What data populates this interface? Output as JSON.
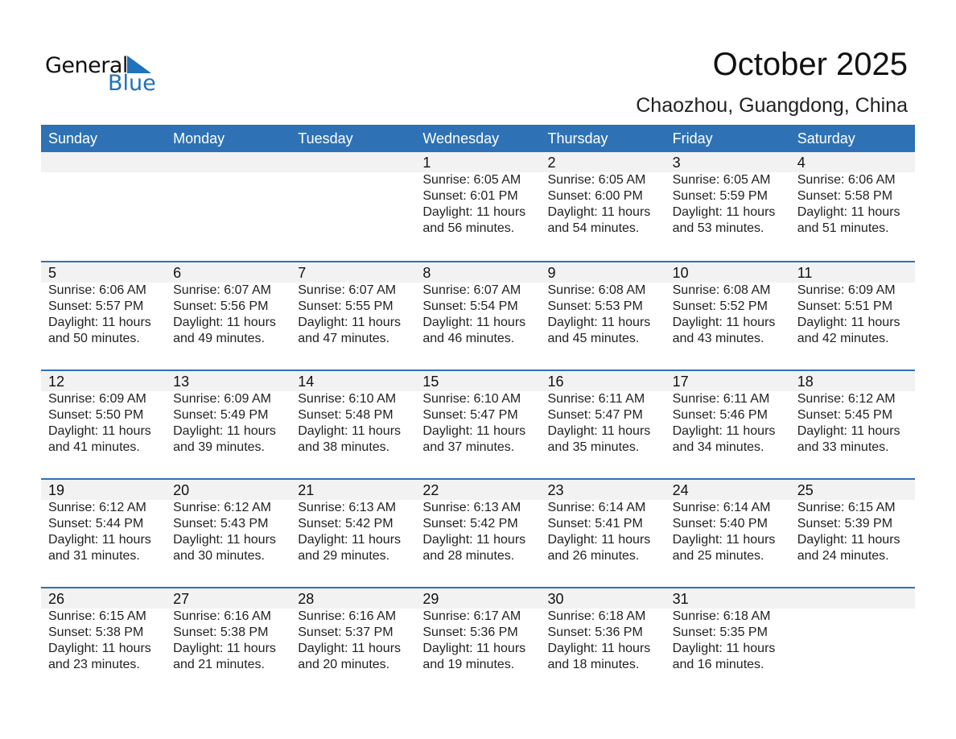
{
  "logo": {
    "text1": "General",
    "text2": "Blue"
  },
  "title": "October 2025",
  "location": "Chaozhou, Guangdong, China",
  "colors": {
    "header": "#2e72b5",
    "band": "#f2f2f2",
    "logo_blue": "#1f72bb"
  },
  "weekdays": [
    "Sunday",
    "Monday",
    "Tuesday",
    "Wednesday",
    "Thursday",
    "Friday",
    "Saturday"
  ],
  "weeks": [
    [
      null,
      null,
      null,
      {
        "day": "1",
        "sunrise": "Sunrise: 6:05 AM",
        "sunset": "Sunset: 6:01 PM",
        "daylight1": "Daylight: 11 hours",
        "daylight2": "and 56 minutes."
      },
      {
        "day": "2",
        "sunrise": "Sunrise: 6:05 AM",
        "sunset": "Sunset: 6:00 PM",
        "daylight1": "Daylight: 11 hours",
        "daylight2": "and 54 minutes."
      },
      {
        "day": "3",
        "sunrise": "Sunrise: 6:05 AM",
        "sunset": "Sunset: 5:59 PM",
        "daylight1": "Daylight: 11 hours",
        "daylight2": "and 53 minutes."
      },
      {
        "day": "4",
        "sunrise": "Sunrise: 6:06 AM",
        "sunset": "Sunset: 5:58 PM",
        "daylight1": "Daylight: 11 hours",
        "daylight2": "and 51 minutes."
      }
    ],
    [
      {
        "day": "5",
        "sunrise": "Sunrise: 6:06 AM",
        "sunset": "Sunset: 5:57 PM",
        "daylight1": "Daylight: 11 hours",
        "daylight2": "and 50 minutes."
      },
      {
        "day": "6",
        "sunrise": "Sunrise: 6:07 AM",
        "sunset": "Sunset: 5:56 PM",
        "daylight1": "Daylight: 11 hours",
        "daylight2": "and 49 minutes."
      },
      {
        "day": "7",
        "sunrise": "Sunrise: 6:07 AM",
        "sunset": "Sunset: 5:55 PM",
        "daylight1": "Daylight: 11 hours",
        "daylight2": "and 47 minutes."
      },
      {
        "day": "8",
        "sunrise": "Sunrise: 6:07 AM",
        "sunset": "Sunset: 5:54 PM",
        "daylight1": "Daylight: 11 hours",
        "daylight2": "and 46 minutes."
      },
      {
        "day": "9",
        "sunrise": "Sunrise: 6:08 AM",
        "sunset": "Sunset: 5:53 PM",
        "daylight1": "Daylight: 11 hours",
        "daylight2": "and 45 minutes."
      },
      {
        "day": "10",
        "sunrise": "Sunrise: 6:08 AM",
        "sunset": "Sunset: 5:52 PM",
        "daylight1": "Daylight: 11 hours",
        "daylight2": "and 43 minutes."
      },
      {
        "day": "11",
        "sunrise": "Sunrise: 6:09 AM",
        "sunset": "Sunset: 5:51 PM",
        "daylight1": "Daylight: 11 hours",
        "daylight2": "and 42 minutes."
      }
    ],
    [
      {
        "day": "12",
        "sunrise": "Sunrise: 6:09 AM",
        "sunset": "Sunset: 5:50 PM",
        "daylight1": "Daylight: 11 hours",
        "daylight2": "and 41 minutes."
      },
      {
        "day": "13",
        "sunrise": "Sunrise: 6:09 AM",
        "sunset": "Sunset: 5:49 PM",
        "daylight1": "Daylight: 11 hours",
        "daylight2": "and 39 minutes."
      },
      {
        "day": "14",
        "sunrise": "Sunrise: 6:10 AM",
        "sunset": "Sunset: 5:48 PM",
        "daylight1": "Daylight: 11 hours",
        "daylight2": "and 38 minutes."
      },
      {
        "day": "15",
        "sunrise": "Sunrise: 6:10 AM",
        "sunset": "Sunset: 5:47 PM",
        "daylight1": "Daylight: 11 hours",
        "daylight2": "and 37 minutes."
      },
      {
        "day": "16",
        "sunrise": "Sunrise: 6:11 AM",
        "sunset": "Sunset: 5:47 PM",
        "daylight1": "Daylight: 11 hours",
        "daylight2": "and 35 minutes."
      },
      {
        "day": "17",
        "sunrise": "Sunrise: 6:11 AM",
        "sunset": "Sunset: 5:46 PM",
        "daylight1": "Daylight: 11 hours",
        "daylight2": "and 34 minutes."
      },
      {
        "day": "18",
        "sunrise": "Sunrise: 6:12 AM",
        "sunset": "Sunset: 5:45 PM",
        "daylight1": "Daylight: 11 hours",
        "daylight2": "and 33 minutes."
      }
    ],
    [
      {
        "day": "19",
        "sunrise": "Sunrise: 6:12 AM",
        "sunset": "Sunset: 5:44 PM",
        "daylight1": "Daylight: 11 hours",
        "daylight2": "and 31 minutes."
      },
      {
        "day": "20",
        "sunrise": "Sunrise: 6:12 AM",
        "sunset": "Sunset: 5:43 PM",
        "daylight1": "Daylight: 11 hours",
        "daylight2": "and 30 minutes."
      },
      {
        "day": "21",
        "sunrise": "Sunrise: 6:13 AM",
        "sunset": "Sunset: 5:42 PM",
        "daylight1": "Daylight: 11 hours",
        "daylight2": "and 29 minutes."
      },
      {
        "day": "22",
        "sunrise": "Sunrise: 6:13 AM",
        "sunset": "Sunset: 5:42 PM",
        "daylight1": "Daylight: 11 hours",
        "daylight2": "and 28 minutes."
      },
      {
        "day": "23",
        "sunrise": "Sunrise: 6:14 AM",
        "sunset": "Sunset: 5:41 PM",
        "daylight1": "Daylight: 11 hours",
        "daylight2": "and 26 minutes."
      },
      {
        "day": "24",
        "sunrise": "Sunrise: 6:14 AM",
        "sunset": "Sunset: 5:40 PM",
        "daylight1": "Daylight: 11 hours",
        "daylight2": "and 25 minutes."
      },
      {
        "day": "25",
        "sunrise": "Sunrise: 6:15 AM",
        "sunset": "Sunset: 5:39 PM",
        "daylight1": "Daylight: 11 hours",
        "daylight2": "and 24 minutes."
      }
    ],
    [
      {
        "day": "26",
        "sunrise": "Sunrise: 6:15 AM",
        "sunset": "Sunset: 5:38 PM",
        "daylight1": "Daylight: 11 hours",
        "daylight2": "and 23 minutes."
      },
      {
        "day": "27",
        "sunrise": "Sunrise: 6:16 AM",
        "sunset": "Sunset: 5:38 PM",
        "daylight1": "Daylight: 11 hours",
        "daylight2": "and 21 minutes."
      },
      {
        "day": "28",
        "sunrise": "Sunrise: 6:16 AM",
        "sunset": "Sunset: 5:37 PM",
        "daylight1": "Daylight: 11 hours",
        "daylight2": "and 20 minutes."
      },
      {
        "day": "29",
        "sunrise": "Sunrise: 6:17 AM",
        "sunset": "Sunset: 5:36 PM",
        "daylight1": "Daylight: 11 hours",
        "daylight2": "and 19 minutes."
      },
      {
        "day": "30",
        "sunrise": "Sunrise: 6:18 AM",
        "sunset": "Sunset: 5:36 PM",
        "daylight1": "Daylight: 11 hours",
        "daylight2": "and 18 minutes."
      },
      {
        "day": "31",
        "sunrise": "Sunrise: 6:18 AM",
        "sunset": "Sunset: 5:35 PM",
        "daylight1": "Daylight: 11 hours",
        "daylight2": "and 16 minutes."
      },
      null
    ]
  ]
}
